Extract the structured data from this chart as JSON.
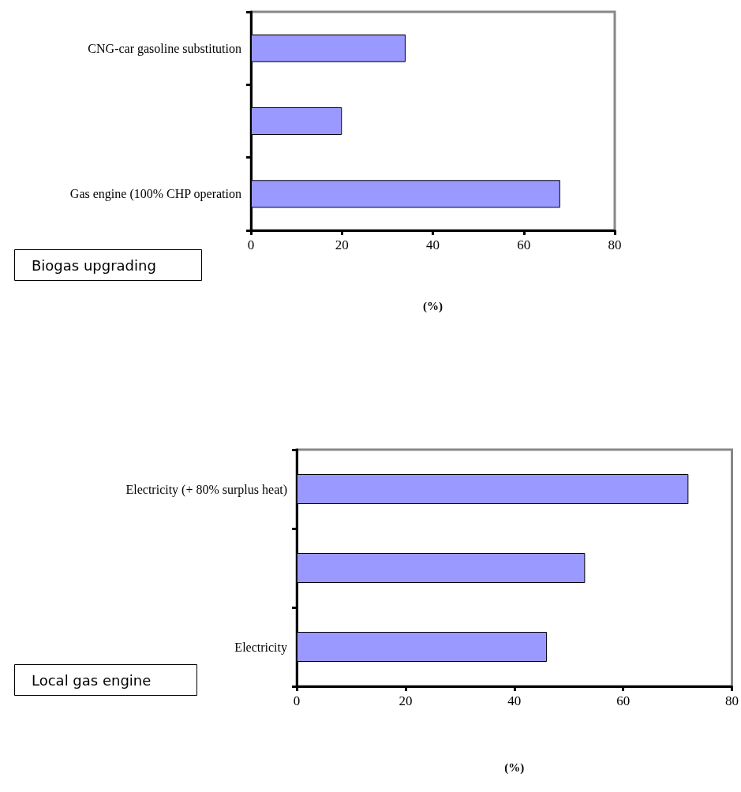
{
  "chart_data": [
    {
      "type": "bar",
      "orientation": "horizontal",
      "title": "Biogas upgrading",
      "xlabel": "(%)",
      "categories": [
        "CNG-car gasoline substitution",
        null,
        "Gas engine (100% CHP operation"
      ],
      "values": [
        34,
        20,
        68
      ],
      "color": "#9999ff",
      "xlim": [
        0,
        80
      ],
      "xticks": [
        0,
        20,
        40,
        60,
        80
      ],
      "grid": false
    },
    {
      "type": "bar",
      "orientation": "horizontal",
      "title": "Local gas engine",
      "xlabel": "(%)",
      "categories": [
        "Electricity (+ 80% surplus heat)",
        null,
        "Electricity"
      ],
      "values": [
        72,
        53,
        46
      ],
      "color": "#9999ff",
      "xlim": [
        0,
        80
      ],
      "xticks": [
        0,
        20,
        40,
        60,
        80
      ],
      "grid": false
    }
  ]
}
